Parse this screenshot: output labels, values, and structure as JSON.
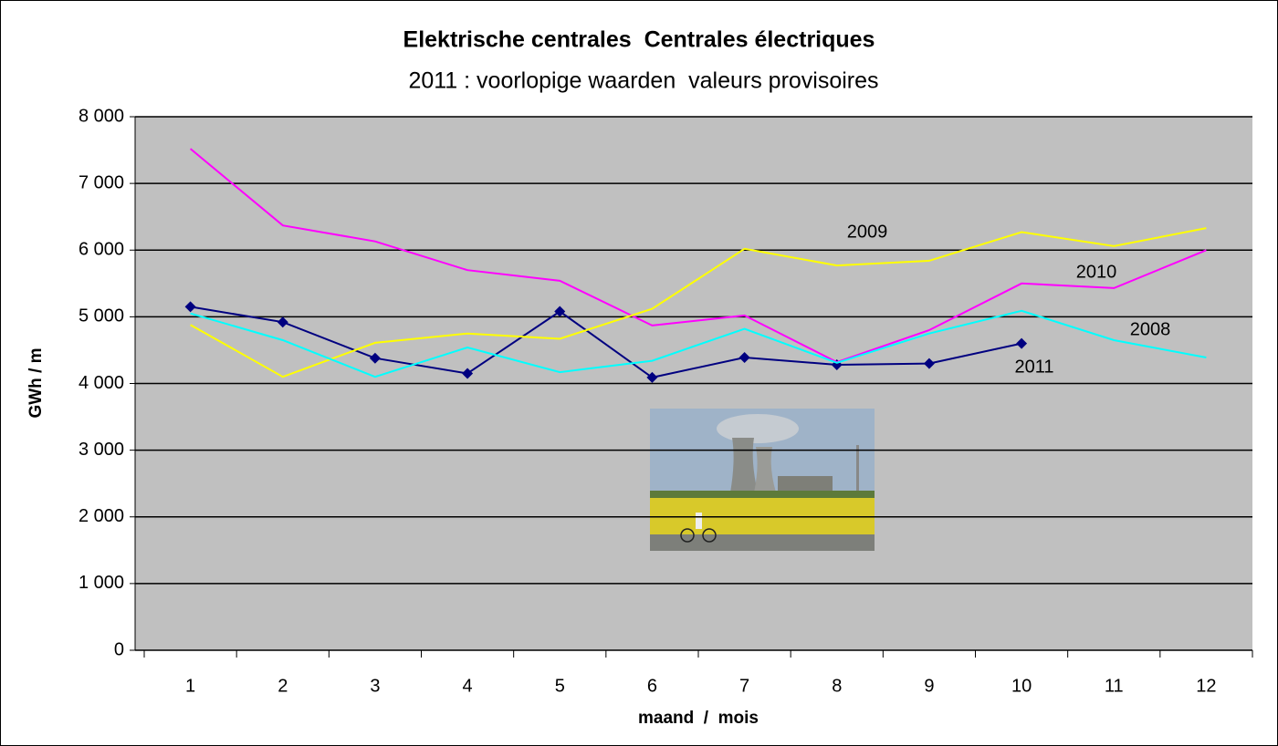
{
  "chart_data": {
    "type": "line",
    "title": "Elektrische centrales  Centrales électriques",
    "subtitle": "2011 : voorlopige waarden  valeurs provisoires",
    "x_label": "maand  /  mois",
    "y_label": "GWh / m",
    "categories": [
      "1",
      "2",
      "3",
      "4",
      "5",
      "6",
      "7",
      "8",
      "9",
      "10",
      "11",
      "12"
    ],
    "ylim": [
      0,
      8000
    ],
    "yticks": [
      0,
      {
        "value": 1000,
        "label": "1 000"
      },
      {
        "value": 2000,
        "label": "2 000"
      },
      {
        "value": 3000,
        "label": "3 000"
      },
      {
        "value": 4000,
        "label": "4 000"
      },
      {
        "value": 5000,
        "label": "5 000"
      },
      {
        "value": 6000,
        "label": "6 000"
      },
      {
        "value": 7000,
        "label": "7 000"
      },
      {
        "value": 8000,
        "label": "8 000"
      }
    ],
    "grid": true,
    "series": [
      {
        "name": "2011",
        "color": "#000080",
        "marker": "diamond",
        "values": [
          5150,
          4920,
          4380,
          4150,
          5080,
          4090,
          4390,
          4280,
          4300,
          4600,
          null,
          null
        ]
      },
      {
        "name": "2010",
        "color": "#ff00ff",
        "values": [
          7520,
          6370,
          6130,
          5700,
          5540,
          4870,
          5020,
          4320,
          4800,
          5500,
          5430,
          6000
        ]
      },
      {
        "name": "2009",
        "color": "#ffff00",
        "values": [
          4880,
          4100,
          4610,
          4750,
          4670,
          5120,
          6020,
          5770,
          5840,
          6270,
          6060,
          6330
        ]
      },
      {
        "name": "2008",
        "color": "#00ffff",
        "values": [
          5050,
          4650,
          4100,
          4540,
          4170,
          4340,
          4820,
          4310,
          4750,
          5090,
          4650,
          4390
        ]
      }
    ]
  }
}
